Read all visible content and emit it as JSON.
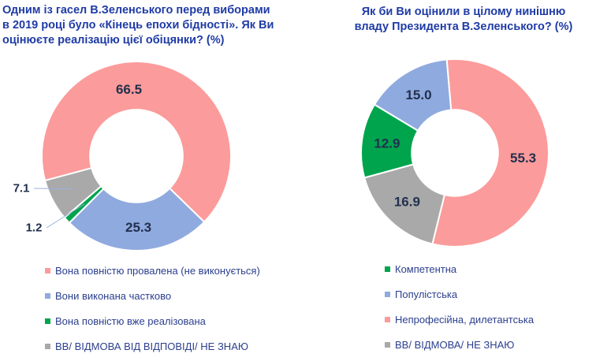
{
  "styles": {
    "background": "#FFFFFF",
    "title_color": "#1F3BA6",
    "legend_text_color": "#2B3F8E",
    "data_label_color": "#22304E",
    "leader_line_color": "#9CB0DF",
    "slice_border_color": "#FFFFFF"
  },
  "chart_data": [
    {
      "type": "pie",
      "subtype": "donut",
      "title": "Одним із гасел В.Зеленського перед виборами\nв 2019 році було «Кінець епохи бідності». Як Ви\nоцінюєте реалізацію цієї обіцянки? (%)",
      "categories": [
        "Вона повністю провалена (не виконується)",
        "Вони виконана частково",
        "Вона повністю вже реалізована",
        "ВВ/ ВІДМОВА ВІД ВІДПОВІДІ/ НЕ ЗНАЮ"
      ],
      "values": [
        66.5,
        25.3,
        1.2,
        7.1
      ],
      "colors": [
        "#FC9B9B",
        "#8FAADF",
        "#00A44D",
        "#A9A9A9"
      ],
      "start_angle_deg": 255,
      "inner_ratio": 0.49,
      "label_placement": [
        "inside",
        "inside",
        "callout",
        "callout"
      ],
      "callout_offsets": {
        "2": [
          -130,
          91
        ],
        "3": [
          -146,
          41
        ]
      },
      "label_nudges": [
        [
          -32,
          2
        ],
        [
          2,
          1
        ],
        [
          0,
          0
        ],
        [
          0,
          0
        ]
      ],
      "legend_order": [
        0,
        1,
        2,
        3
      ],
      "legend_position": "bottom-left"
    },
    {
      "type": "pie",
      "subtype": "donut",
      "title": "Як би Ви оцінили в цілому нинішню\nвладу Президента В.Зеленського? (%)",
      "categories": [
        "Непрофесійна, дилетантська",
        "ВВ/ ВІДМОВА/ НЕ ЗНАЮ",
        "Компетентна",
        "Популістська"
      ],
      "values": [
        55.3,
        16.9,
        12.9,
        15.0
      ],
      "colors": [
        "#FC9B9B",
        "#A9A9A9",
        "#00A44D",
        "#8FAADF"
      ],
      "start_angle_deg": 355,
      "inner_ratio": 0.46,
      "label_placement": [
        "inside",
        "inside",
        "inside",
        "inside"
      ],
      "callout_offsets": {},
      "label_nudges": [
        [
          0,
          0
        ],
        [
          0,
          0
        ],
        [
          0,
          0
        ],
        [
          0,
          0
        ]
      ],
      "legend_order": [
        2,
        3,
        0,
        1
      ],
      "legend_position": "bottom-left"
    }
  ]
}
